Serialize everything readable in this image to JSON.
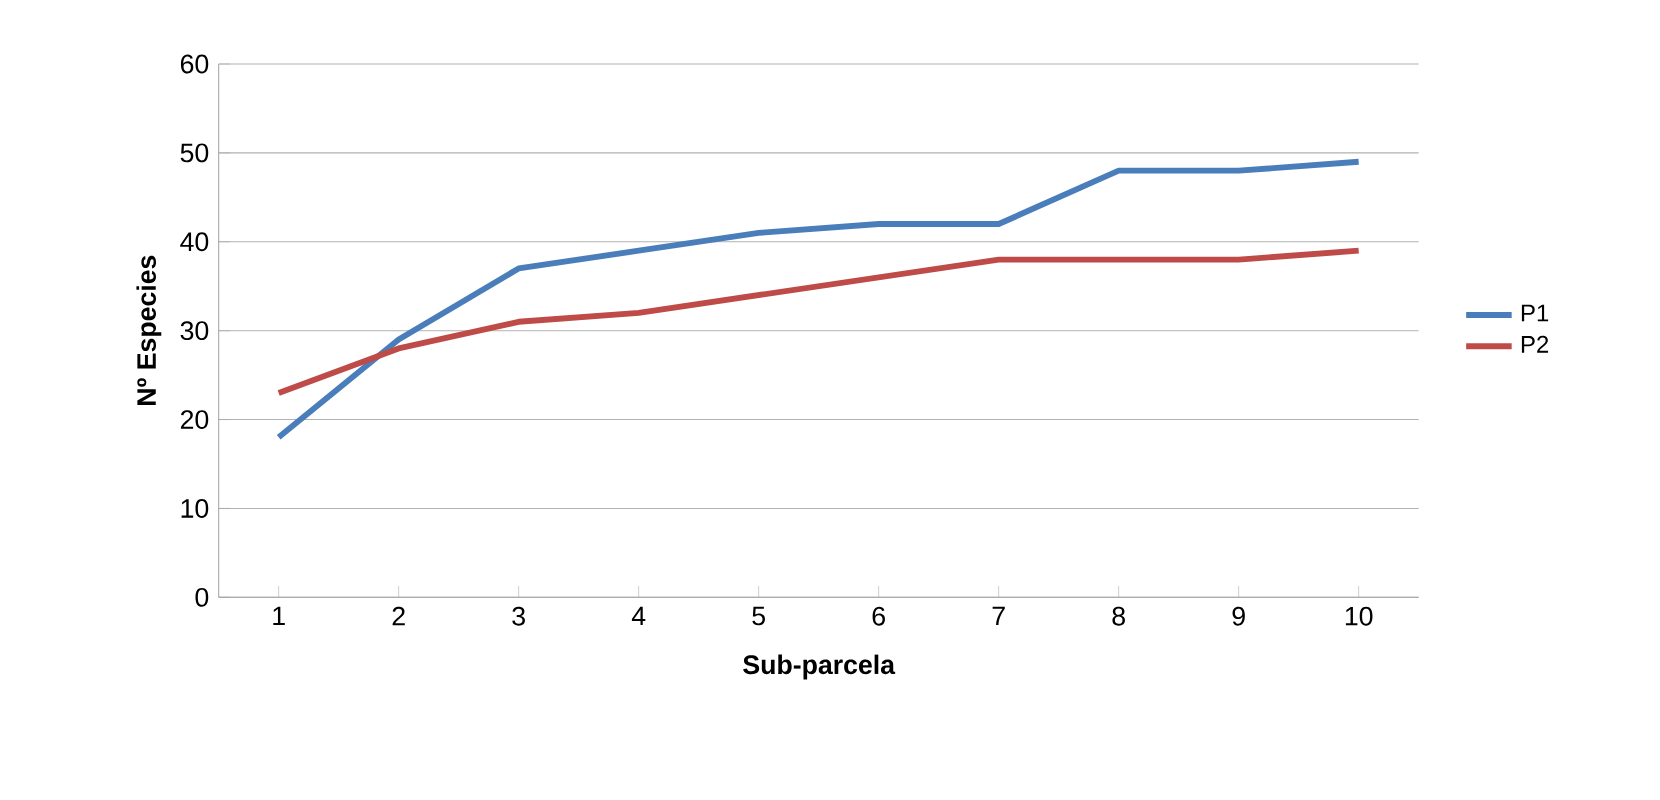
{
  "chart_data": {
    "type": "line",
    "xlabel": "Sub-parcela",
    "ylabel": "Nº Especies",
    "categories": [
      "1",
      "2",
      "3",
      "4",
      "5",
      "6",
      "7",
      "8",
      "9",
      "10"
    ],
    "series": [
      {
        "name": "P1",
        "color": "#4a7ebb",
        "values": [
          18,
          29,
          37,
          39,
          41,
          42,
          42,
          48,
          48,
          49
        ]
      },
      {
        "name": "P2",
        "color": "#be4b48",
        "values": [
          23,
          28,
          31,
          32,
          34,
          36,
          38,
          38,
          38,
          39
        ]
      }
    ],
    "ylim": [
      0,
      60
    ],
    "yticks": [
      0,
      10,
      20,
      30,
      40,
      50,
      60
    ],
    "grid": "y",
    "legend": "right",
    "marker": "none",
    "line_style": "solid"
  }
}
